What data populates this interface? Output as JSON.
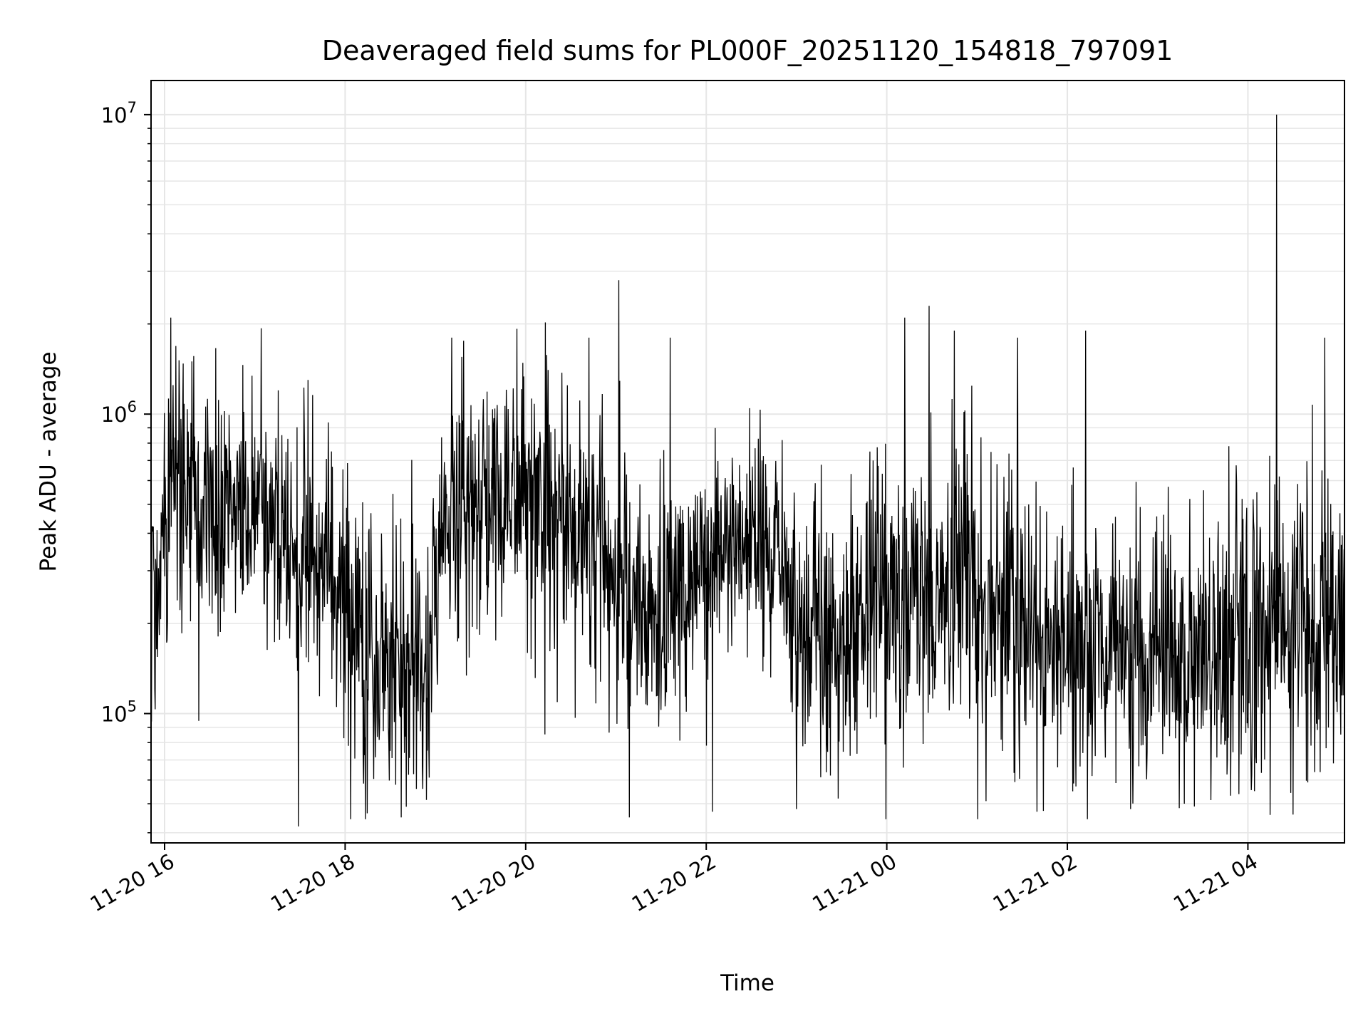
{
  "chart_data": {
    "type": "line",
    "title": "Deaveraged field sums for PL000F_20251120_154818_797091",
    "xlabel": "Time",
    "ylabel": "Peak ADU - average",
    "yscale": "log",
    "ylim": [
      37000,
      13000000
    ],
    "xlim_hours": [
      15.85,
      29.07
    ],
    "grid": true,
    "x_ticks": [
      {
        "label": "11-20 16",
        "hour": 16
      },
      {
        "label": "11-20 18",
        "hour": 18
      },
      {
        "label": "11-20 20",
        "hour": 20
      },
      {
        "label": "11-20 22",
        "hour": 22
      },
      {
        "label": "11-21 00",
        "hour": 24
      },
      {
        "label": "11-21 02",
        "hour": 26
      },
      {
        "label": "11-21 04",
        "hour": 28
      }
    ],
    "y_ticks": [
      {
        "value": 100000,
        "base": "10",
        "exp": "5"
      },
      {
        "value": 1000000,
        "base": "10",
        "exp": "6"
      },
      {
        "value": 10000000,
        "base": "10",
        "exp": "7"
      }
    ],
    "series": [
      {
        "name": "field sums",
        "color": "#000000",
        "baseline_profile": [
          {
            "hour": 15.85,
            "center": 250000,
            "spread": 1.9
          },
          {
            "hour": 16.1,
            "center": 650000,
            "spread": 1.8
          },
          {
            "hour": 16.5,
            "center": 420000,
            "spread": 1.8
          },
          {
            "hour": 17.0,
            "center": 500000,
            "spread": 1.6
          },
          {
            "hour": 17.6,
            "center": 380000,
            "spread": 1.8
          },
          {
            "hour": 18.2,
            "center": 160000,
            "spread": 1.9
          },
          {
            "hour": 18.9,
            "center": 150000,
            "spread": 1.9
          },
          {
            "hour": 19.1,
            "center": 450000,
            "spread": 1.6
          },
          {
            "hour": 19.8,
            "center": 550000,
            "spread": 1.8
          },
          {
            "hour": 20.5,
            "center": 420000,
            "spread": 1.8
          },
          {
            "hour": 21.5,
            "center": 200000,
            "spread": 1.9
          },
          {
            "hour": 22.3,
            "center": 380000,
            "spread": 1.5
          },
          {
            "hour": 22.9,
            "center": 300000,
            "spread": 1.7
          },
          {
            "hour": 23.1,
            "center": 170000,
            "spread": 1.8
          },
          {
            "hour": 24.3,
            "center": 260000,
            "spread": 1.9
          },
          {
            "hour": 25.5,
            "center": 220000,
            "spread": 1.9
          },
          {
            "hour": 26.3,
            "center": 160000,
            "spread": 1.7
          },
          {
            "hour": 27.0,
            "center": 140000,
            "spread": 1.8
          },
          {
            "hour": 28.2,
            "center": 180000,
            "spread": 1.9
          },
          {
            "hour": 29.07,
            "center": 200000,
            "spread": 1.9
          }
        ],
        "spikes": [
          {
            "hour": 16.07,
            "value": 2100000
          },
          {
            "hour": 16.3,
            "value": 1500000
          },
          {
            "hour": 17.26,
            "value": 1200000
          },
          {
            "hour": 17.59,
            "value": 1300000
          },
          {
            "hour": 17.48,
            "value": 42000
          },
          {
            "hour": 18.62,
            "value": 45000
          },
          {
            "hour": 19.18,
            "value": 1800000
          },
          {
            "hour": 21.03,
            "value": 2800000
          },
          {
            "hour": 20.7,
            "value": 1800000
          },
          {
            "hour": 21.15,
            "value": 45000
          },
          {
            "hour": 21.6,
            "value": 1800000
          },
          {
            "hour": 22.07,
            "value": 47000
          },
          {
            "hour": 23.0,
            "value": 48000
          },
          {
            "hour": 24.2,
            "value": 2100000
          },
          {
            "hour": 24.47,
            "value": 2300000
          },
          {
            "hour": 24.75,
            "value": 1900000
          },
          {
            "hour": 25.45,
            "value": 1800000
          },
          {
            "hour": 25.1,
            "value": 51000
          },
          {
            "hour": 26.2,
            "value": 1900000
          },
          {
            "hour": 26.7,
            "value": 48000
          },
          {
            "hour": 28.32,
            "value": 10000000
          },
          {
            "hour": 28.85,
            "value": 1800000
          }
        ]
      }
    ]
  }
}
